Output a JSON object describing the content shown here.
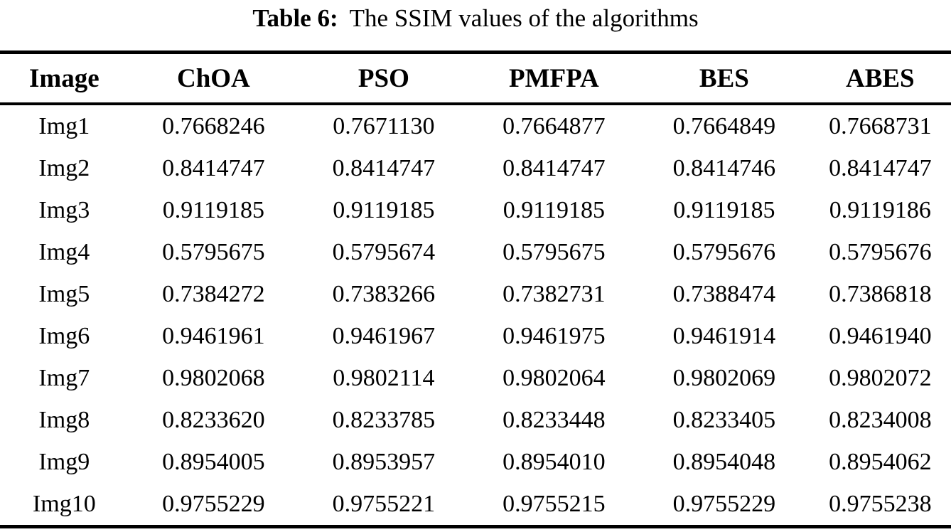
{
  "caption": {
    "label": "Table 6:",
    "text": "The SSIM values of the algorithms"
  },
  "chart_data": {
    "type": "table",
    "title": "Table 6: The SSIM values of the algorithms",
    "columns": [
      "Image",
      "ChOA",
      "PSO",
      "PMFPA",
      "BES",
      "ABES"
    ],
    "rows": [
      {
        "image": "Img1",
        "values": [
          "0.7668246",
          "0.7671130",
          "0.7664877",
          "0.7664849",
          "0.7668731"
        ]
      },
      {
        "image": "Img2",
        "values": [
          "0.8414747",
          "0.8414747",
          "0.8414747",
          "0.8414746",
          "0.8414747"
        ]
      },
      {
        "image": "Img3",
        "values": [
          "0.9119185",
          "0.9119185",
          "0.9119185",
          "0.9119185",
          "0.9119186"
        ]
      },
      {
        "image": "Img4",
        "values": [
          "0.5795675",
          "0.5795674",
          "0.5795675",
          "0.5795676",
          "0.5795676"
        ]
      },
      {
        "image": "Img5",
        "values": [
          "0.7384272",
          "0.7383266",
          "0.7382731",
          "0.7388474",
          "0.7386818"
        ]
      },
      {
        "image": "Img6",
        "values": [
          "0.9461961",
          "0.9461967",
          "0.9461975",
          "0.9461914",
          "0.9461940"
        ]
      },
      {
        "image": "Img7",
        "values": [
          "0.9802068",
          "0.9802114",
          "0.9802064",
          "0.9802069",
          "0.9802072"
        ]
      },
      {
        "image": "Img8",
        "values": [
          "0.8233620",
          "0.8233785",
          "0.8233448",
          "0.8233405",
          "0.8234008"
        ]
      },
      {
        "image": "Img9",
        "values": [
          "0.8954005",
          "0.8953957",
          "0.8954010",
          "0.8954048",
          "0.8954062"
        ]
      },
      {
        "image": "Img10",
        "values": [
          "0.9755229",
          "0.9755221",
          "0.9755215",
          "0.9755229",
          "0.9755238"
        ]
      }
    ]
  }
}
